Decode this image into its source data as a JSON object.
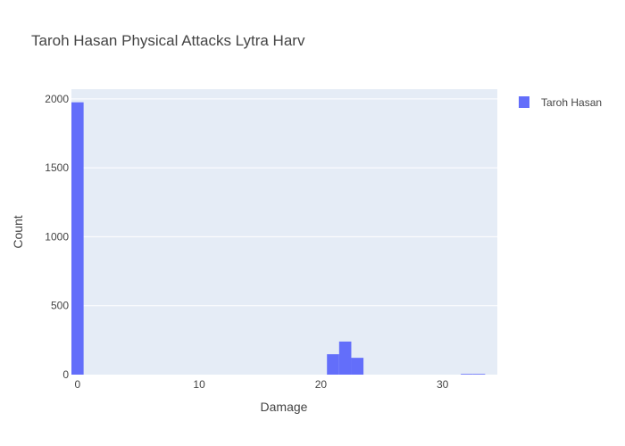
{
  "chart_data": {
    "type": "bar",
    "title": "Taroh Hasan Physical Attacks Lytra Harv",
    "xlabel": "Damage",
    "ylabel": "Count",
    "xlim": [
      -0.5,
      34.5
    ],
    "ylim": [
      0,
      2070
    ],
    "x_ticks": [
      0,
      10,
      20,
      30
    ],
    "y_ticks": [
      0,
      500,
      1000,
      1500,
      2000
    ],
    "grid": true,
    "legend_position": "top-right",
    "series": [
      {
        "name": "Taroh Hasan",
        "color": "#636efa",
        "bins": [
          {
            "x0": -0.5,
            "x1": 0.5,
            "count": 1975
          },
          {
            "x0": 20.5,
            "x1": 21.5,
            "count": 148
          },
          {
            "x0": 21.5,
            "x1": 22.5,
            "count": 240
          },
          {
            "x0": 22.5,
            "x1": 23.5,
            "count": 122
          },
          {
            "x0": 31.5,
            "x1": 32.5,
            "count": 5
          },
          {
            "x0": 32.5,
            "x1": 33.5,
            "count": 5
          }
        ]
      }
    ],
    "colors": {
      "plot_background": "#e5ecf6",
      "grid": "#ffffff",
      "text": "#444444",
      "title": "#444444"
    }
  }
}
